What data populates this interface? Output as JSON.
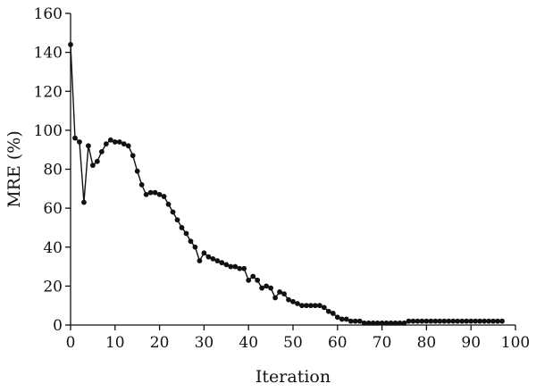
{
  "chart_data": {
    "type": "line",
    "title": "",
    "xlabel": "Iteration",
    "ylabel": "MRE (%)",
    "xlim": [
      0,
      100
    ],
    "ylim": [
      0,
      160
    ],
    "xticks": [
      0,
      10,
      20,
      30,
      40,
      50,
      60,
      70,
      80,
      90,
      100
    ],
    "yticks": [
      0,
      20,
      40,
      60,
      80,
      100,
      120,
      140,
      160
    ],
    "xtick_labels": [
      "0",
      "10",
      "20",
      "30",
      "40",
      "50",
      "60",
      "70",
      "80",
      "90",
      "100"
    ],
    "ytick_labels": [
      "0",
      "20",
      "40",
      "60",
      "80",
      "100",
      "120",
      "140",
      "160"
    ],
    "grid": false,
    "legend": "none",
    "series": [
      {
        "marker": "circle",
        "color": "#111111",
        "x": [
          0,
          1,
          2,
          3,
          4,
          5,
          6,
          7,
          8,
          9,
          10,
          11,
          12,
          13,
          14,
          15,
          16,
          17,
          18,
          19,
          20,
          21,
          22,
          23,
          24,
          25,
          26,
          27,
          28,
          29,
          30,
          31,
          32,
          33,
          34,
          35,
          36,
          37,
          38,
          39,
          40,
          41,
          42,
          43,
          44,
          45,
          46,
          47,
          48,
          49,
          50,
          51,
          52,
          53,
          54,
          55,
          56,
          57,
          58,
          59,
          60,
          61,
          62,
          63,
          64,
          65,
          66,
          67,
          68,
          69,
          70,
          71,
          72,
          73,
          74,
          75,
          76,
          77,
          78,
          79,
          80,
          81,
          82,
          83,
          84,
          85,
          86,
          87,
          88,
          89,
          90,
          91,
          92,
          93,
          94,
          95,
          96,
          97
        ],
        "values": [
          144,
          96,
          94,
          63,
          92,
          82,
          84,
          89,
          93,
          95,
          94,
          94,
          93,
          92,
          87,
          79,
          72,
          67,
          68,
          68,
          67,
          66,
          62,
          58,
          54,
          50,
          47,
          43,
          40,
          33,
          37,
          35,
          34,
          33,
          32,
          31,
          30,
          30,
          29,
          29,
          23,
          25,
          23,
          19,
          20,
          19,
          14,
          17,
          16,
          13,
          12,
          11,
          10,
          10,
          10,
          10,
          10,
          9,
          7,
          6,
          4,
          3,
          3,
          2,
          2,
          2,
          1,
          1,
          1,
          1,
          1,
          1,
          1,
          1,
          1,
          1,
          2,
          2,
          2,
          2,
          2,
          2,
          2,
          2,
          2,
          2,
          2,
          2,
          2,
          2,
          2,
          2,
          2,
          2,
          2,
          2,
          2,
          2
        ]
      }
    ]
  }
}
